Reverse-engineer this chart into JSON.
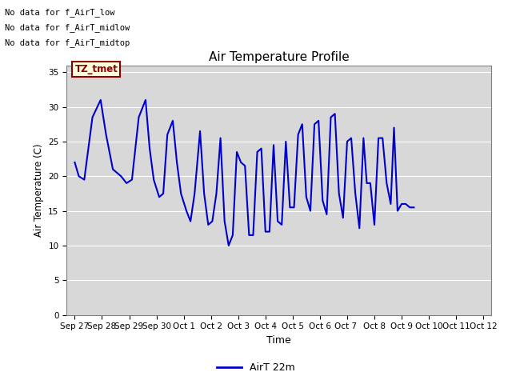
{
  "title": "Air Temperature Profile",
  "xlabel": "Time",
  "ylabel": "Air Temperature (C)",
  "legend_label": "AirT 22m",
  "line_color": "#0000cc",
  "line_width": 1.5,
  "background_color": "#ffffff",
  "plot_bg_color": "#d8d8d8",
  "ylim": [
    0,
    36
  ],
  "yticks": [
    0,
    5,
    10,
    15,
    20,
    25,
    30,
    35
  ],
  "annotations": [
    "No data for f_AirT_low",
    "No data for f_AirT_midlow",
    "No data for f_AirT_midtop"
  ],
  "tz_label": "TZ_tmet",
  "x_tick_labels": [
    "Sep 27",
    "Sep 28",
    "Sep 29",
    "Sep 30",
    "Oct 1",
    "Oct 2",
    "Oct 3",
    "Oct 4",
    "Oct 5",
    "Oct 6",
    "Oct 7 ",
    "Oct 8",
    "Oct 9",
    "Oct 10",
    "Oct 11",
    "Oct 12"
  ],
  "data_points": [
    [
      0.0,
      22.0
    ],
    [
      0.15,
      20.0
    ],
    [
      0.35,
      19.5
    ],
    [
      0.65,
      28.5
    ],
    [
      0.95,
      31.0
    ],
    [
      1.15,
      26.0
    ],
    [
      1.4,
      21.0
    ],
    [
      1.7,
      20.0
    ],
    [
      1.9,
      19.0
    ],
    [
      2.1,
      19.5
    ],
    [
      2.35,
      28.5
    ],
    [
      2.6,
      31.0
    ],
    [
      2.75,
      24.0
    ],
    [
      2.9,
      19.5
    ],
    [
      3.1,
      17.0
    ],
    [
      3.25,
      17.5
    ],
    [
      3.4,
      26.0
    ],
    [
      3.6,
      28.0
    ],
    [
      3.75,
      22.0
    ],
    [
      3.9,
      17.5
    ],
    [
      4.1,
      15.0
    ],
    [
      4.25,
      13.5
    ],
    [
      4.4,
      17.5
    ],
    [
      4.6,
      26.5
    ],
    [
      4.75,
      17.5
    ],
    [
      4.9,
      13.0
    ],
    [
      5.05,
      13.5
    ],
    [
      5.2,
      17.5
    ],
    [
      5.35,
      25.5
    ],
    [
      5.5,
      13.5
    ],
    [
      5.65,
      10.0
    ],
    [
      5.8,
      11.5
    ],
    [
      5.95,
      23.5
    ],
    [
      6.1,
      22.0
    ],
    [
      6.25,
      21.5
    ],
    [
      6.4,
      11.5
    ],
    [
      6.55,
      11.5
    ],
    [
      6.7,
      23.5
    ],
    [
      6.85,
      24.0
    ],
    [
      7.0,
      12.0
    ],
    [
      7.15,
      12.0
    ],
    [
      7.3,
      24.5
    ],
    [
      7.45,
      13.5
    ],
    [
      7.6,
      13.0
    ],
    [
      7.75,
      25.0
    ],
    [
      7.9,
      15.5
    ],
    [
      8.05,
      15.5
    ],
    [
      8.2,
      26.0
    ],
    [
      8.35,
      27.5
    ],
    [
      8.5,
      17.0
    ],
    [
      8.65,
      15.0
    ],
    [
      8.8,
      27.5
    ],
    [
      8.95,
      28.0
    ],
    [
      9.1,
      16.5
    ],
    [
      9.25,
      14.5
    ],
    [
      9.4,
      28.5
    ],
    [
      9.55,
      29.0
    ],
    [
      9.7,
      17.5
    ],
    [
      9.85,
      14.0
    ],
    [
      10.0,
      25.0
    ],
    [
      10.15,
      25.5
    ],
    [
      10.3,
      17.5
    ],
    [
      10.45,
      12.5
    ],
    [
      10.6,
      25.5
    ],
    [
      10.72,
      19.0
    ],
    [
      10.85,
      19.0
    ],
    [
      11.0,
      13.0
    ],
    [
      11.15,
      25.5
    ],
    [
      11.3,
      25.5
    ],
    [
      11.45,
      19.0
    ],
    [
      11.6,
      16.0
    ],
    [
      11.72,
      27.0
    ],
    [
      11.85,
      15.0
    ],
    [
      12.0,
      16.0
    ],
    [
      12.15,
      16.0
    ],
    [
      12.3,
      15.5
    ],
    [
      12.45,
      15.5
    ]
  ]
}
